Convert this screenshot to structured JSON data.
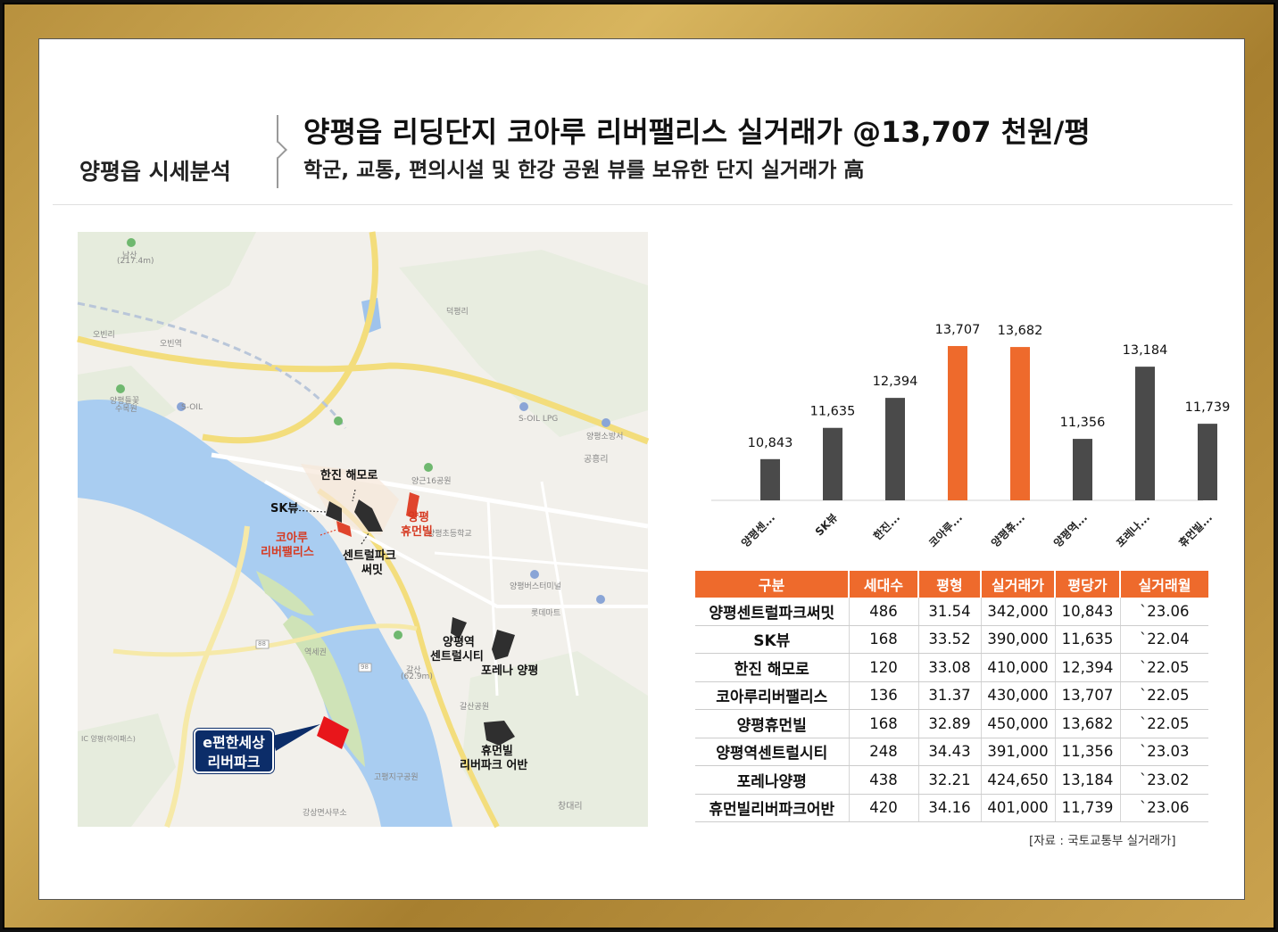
{
  "header": {
    "section_label": "양평읍 시세분석",
    "title": "양평읍 리딩단지 코아루 리버팰리스 실거래가 @13,707 천원/평",
    "subtitle": "학군, 교통, 편의시설 및 한강 공원 뷰를 보유한 단지 실거래가 高"
  },
  "map": {
    "labels": {
      "hanjin": "한진 해모로",
      "skview": "SK뷰",
      "koaru_1": "코아루",
      "koaru_2": "리버팰리스",
      "central_1": "센트럴파크",
      "central_2": "써밋",
      "humen_1": "양평",
      "humen_2": "휴먼빌",
      "station_1": "양평역",
      "station_2": "센트럴시티",
      "forena": "포레나 양평",
      "humenriver_1": "휴먼빌",
      "humenriver_2": "리버파크 어반",
      "epyeon_1": "e편한세상",
      "epyeon_2": "리버파크"
    },
    "places": {
      "namsan": "남산",
      "namsan_h": "(217.4m)",
      "deokpyeong": "덕평리",
      "obin": "오빈리",
      "obin_st": "오빈역",
      "botanic_1": "양평들꽃",
      "botanic_2": "수목원",
      "soil": "S-OIL",
      "soil_lpg": "S-OIL LPG",
      "fire": "양평소방서",
      "gongheung": "공흥리",
      "yanggeun": "양근16공원",
      "school1": "양평초등학교",
      "bus": "양평버스터미널",
      "lotte": "롯데마트",
      "sports": "역세권",
      "galsan": "갈산",
      "galsan_h": "(62.9m)",
      "galsan_park": "갈산공원",
      "changdae": "창대리",
      "gangsang": "강상면사무소",
      "ic": "IC 양평(하이패스)",
      "yangpyeong_gu": "고평지구공원",
      "r88": "88",
      "r98": "98"
    }
  },
  "chart_data": {
    "type": "bar",
    "categories": [
      "양평센...",
      "SK뷰",
      "한진...",
      "코아루...",
      "양평휴...",
      "양평역...",
      "포레나...",
      "휴먼빌..."
    ],
    "values": [
      10843,
      11635,
      12394,
      13707,
      13682,
      11356,
      13184,
      11739
    ],
    "value_labels": [
      "10,843",
      "11,635",
      "12,394",
      "13,707",
      "13,682",
      "11,356",
      "13,184",
      "11,739"
    ],
    "highlight": [
      false,
      false,
      false,
      true,
      true,
      false,
      false,
      false
    ],
    "colors": {
      "default": "#4a4a4a",
      "highlight": "#ee6a2c"
    },
    "ylim": [
      9800,
      14000
    ],
    "grid": false,
    "title": "",
    "xlabel": "",
    "ylabel": ""
  },
  "table": {
    "headers": [
      "구분",
      "세대수",
      "평형",
      "실거래가",
      "평당가",
      "실거래월"
    ],
    "rows": [
      [
        "양평센트럴파크써밋",
        "486",
        "31.54",
        "342,000",
        "10,843",
        "`23.06"
      ],
      [
        "SK뷰",
        "168",
        "33.52",
        "390,000",
        "11,635",
        "`22.04"
      ],
      [
        "한진 해모로",
        "120",
        "33.08",
        "410,000",
        "12,394",
        "`22.05"
      ],
      [
        "코아루리버팰리스",
        "136",
        "31.37",
        "430,000",
        "13,707",
        "`22.05"
      ],
      [
        "양평휴먼빌",
        "168",
        "32.89",
        "450,000",
        "13,682",
        "`22.05"
      ],
      [
        "양평역센트럴시티",
        "248",
        "34.43",
        "391,000",
        "11,356",
        "`23.03"
      ],
      [
        "포레나양평",
        "438",
        "32.21",
        "424,650",
        "13,184",
        "`23.02"
      ],
      [
        "휴먼빌리버파크어반",
        "420",
        "34.16",
        "401,000",
        "11,739",
        "`23.06"
      ]
    ],
    "source": "[자료 : 국토교통부 실거래가]"
  }
}
